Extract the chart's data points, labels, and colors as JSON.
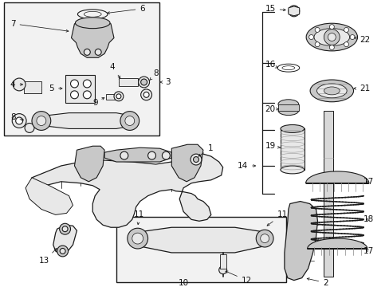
{
  "bg_color": "#ffffff",
  "line_color": "#1a1a1a",
  "gray_fill": "#c8c8c8",
  "light_gray": "#e8e8e8",
  "mid_gray": "#a0a0a0",
  "dark_gray": "#606060",
  "font_size": 7.5,
  "arrow_lw": 0.55,
  "part_lw": 0.8
}
